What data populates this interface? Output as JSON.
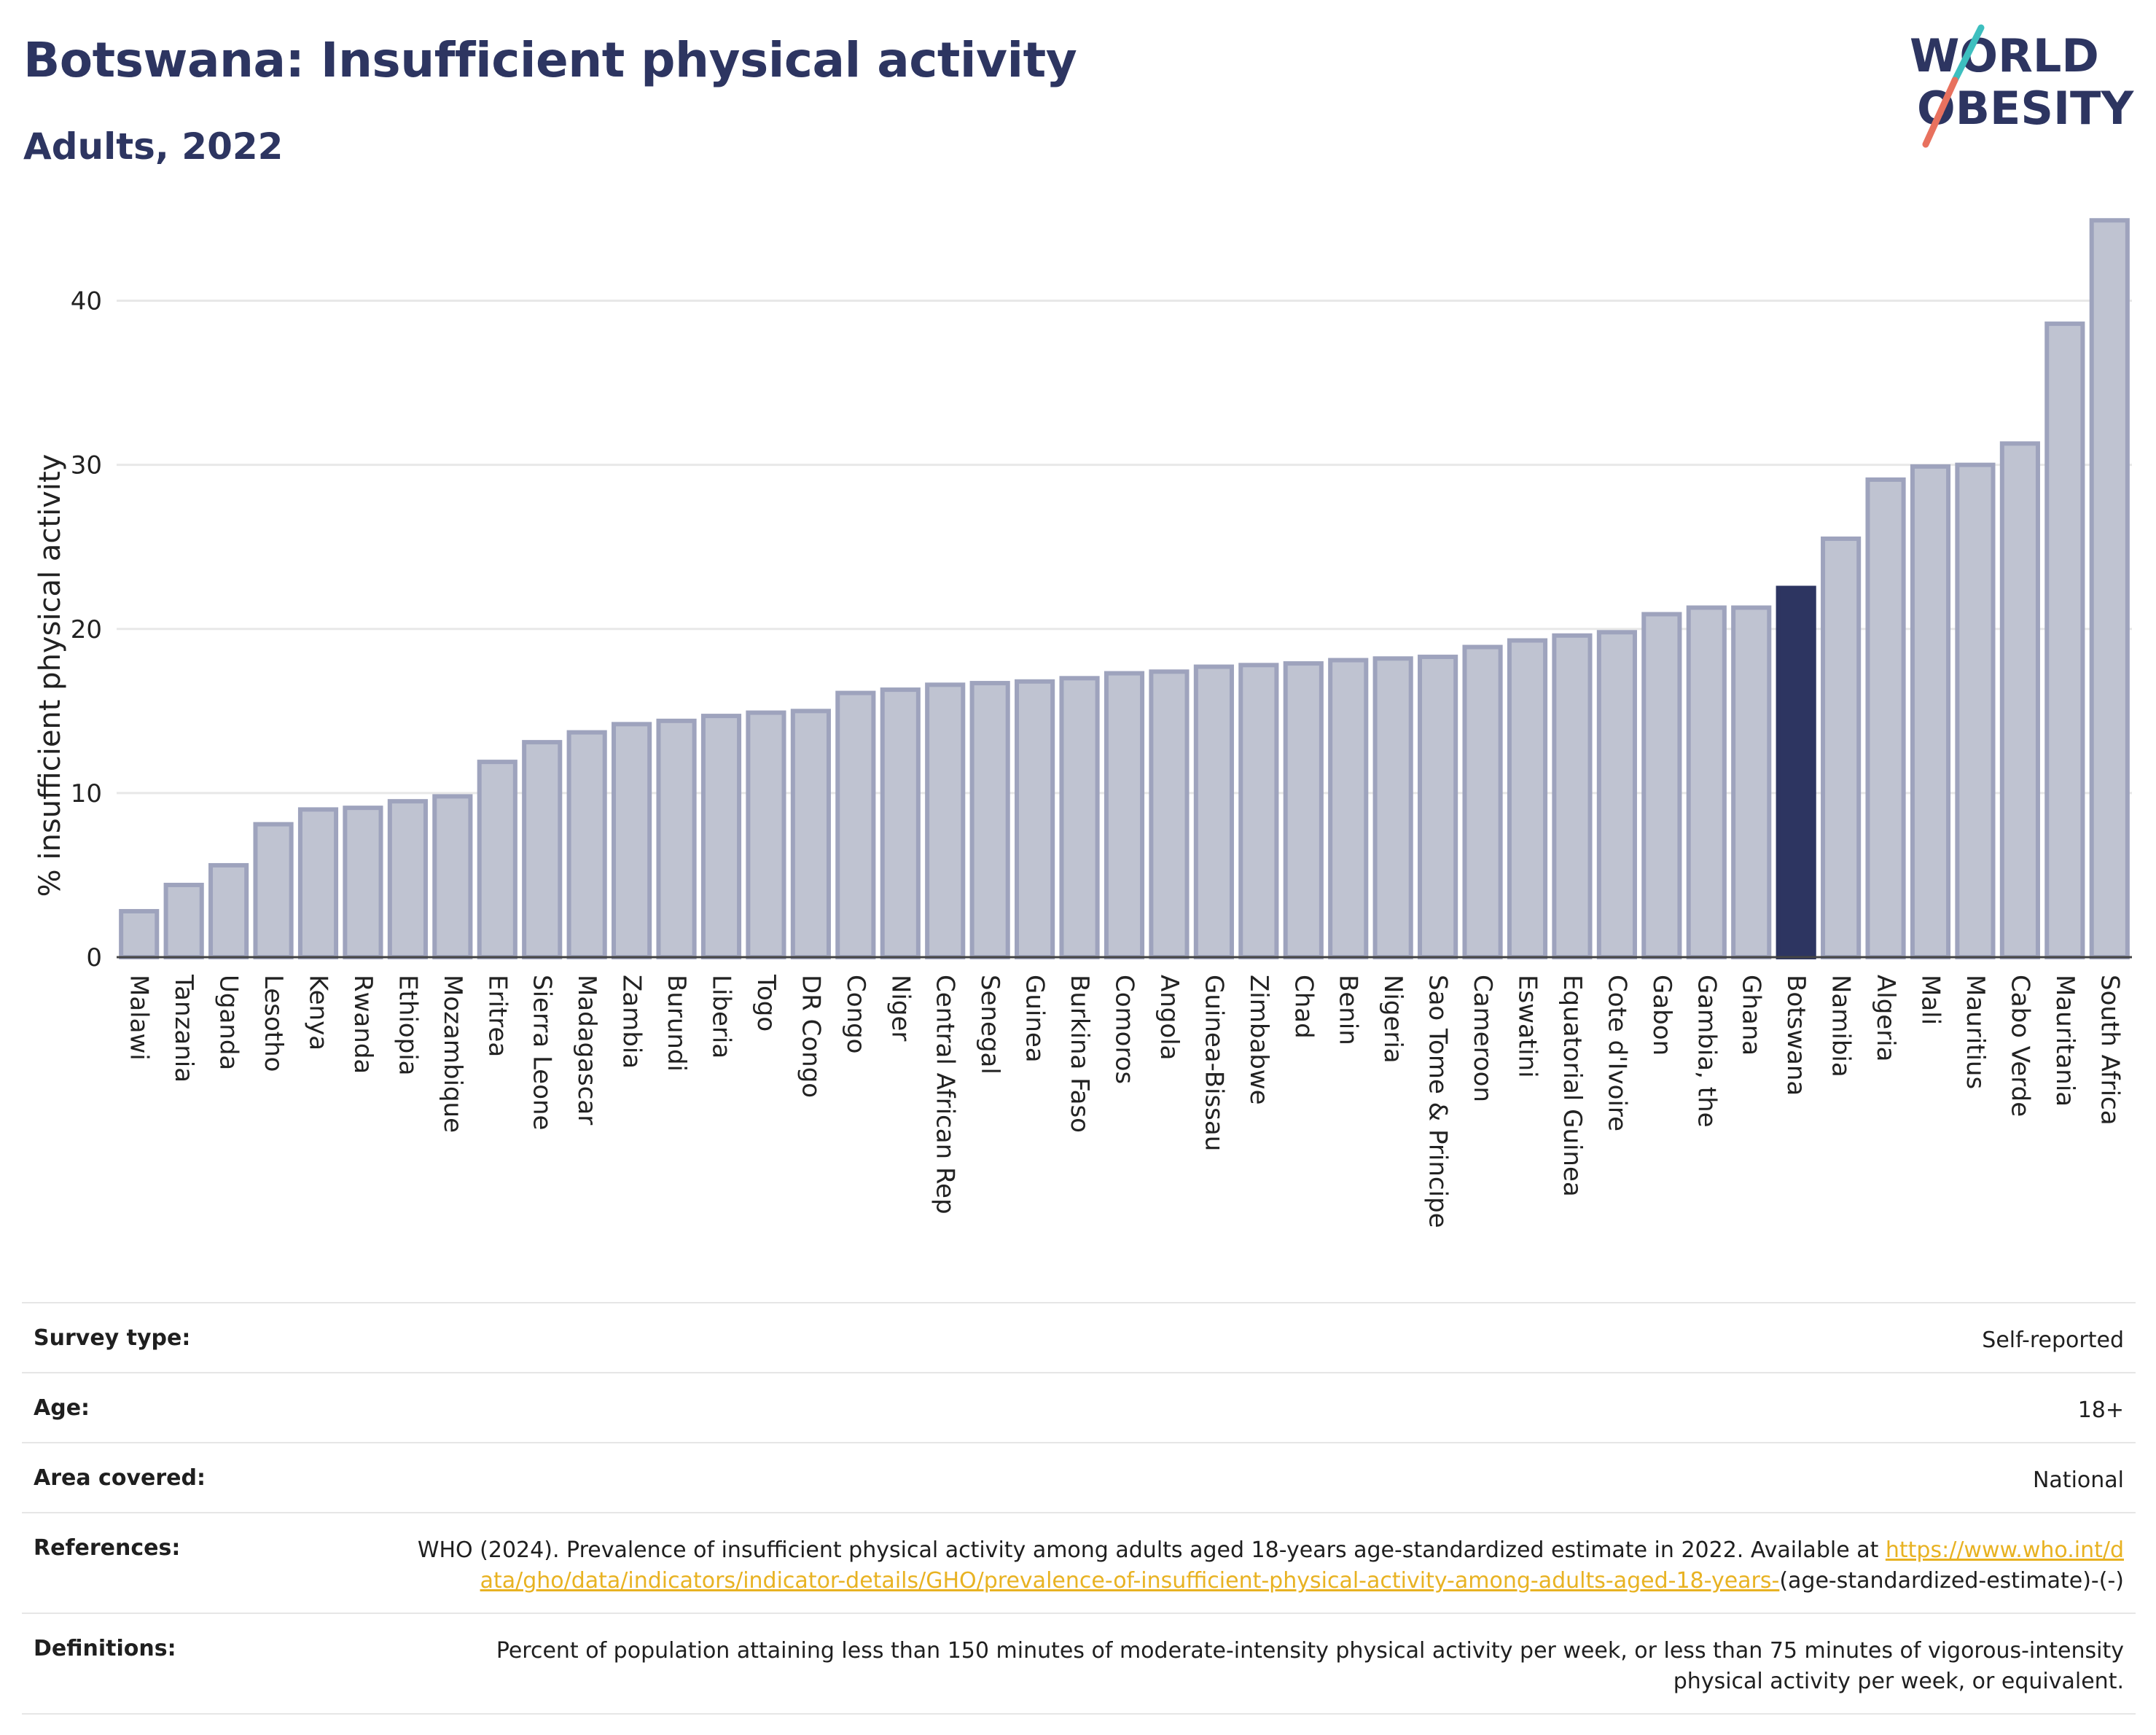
{
  "header": {
    "title": "Botswana: Insufficient physical activity",
    "subtitle": "Adults, 2022"
  },
  "logo": {
    "line1": "WORLD",
    "line2": "OBESITY",
    "text_color": "#2d3561",
    "slash_top_color": "#3dbfbf",
    "slash_bottom_color": "#e8715e"
  },
  "colors": {
    "bar_default": "#bfc3d1",
    "bar_default_border": "#9ea3bd",
    "bar_highlight": "#2d3561",
    "grid": "#e8e8e8"
  },
  "chart_data": {
    "type": "bar",
    "title": "Botswana: Insufficient physical activity",
    "subtitle": "Adults, 2022",
    "xlabel": "",
    "ylabel": "% insufficient physical activity",
    "ylim": [
      0,
      45
    ],
    "yticks": [
      0,
      10,
      20,
      30,
      40
    ],
    "grid": true,
    "highlight": "Botswana",
    "categories": [
      "Malawi",
      "Tanzania",
      "Uganda",
      "Lesotho",
      "Kenya",
      "Rwanda",
      "Ethiopia",
      "Mozambique",
      "Eritrea",
      "Sierra Leone",
      "Madagascar",
      "Zambia",
      "Burundi",
      "Liberia",
      "Togo",
      "DR Congo",
      "Congo",
      "Niger",
      "Central African Rep",
      "Senegal",
      "Guinea",
      "Burkina Faso",
      "Comoros",
      "Angola",
      "Guinea-Bissau",
      "Zimbabwe",
      "Chad",
      "Benin",
      "Nigeria",
      "Sao Tome & Principe",
      "Cameroon",
      "Eswatini",
      "Equatorial Guinea",
      "Cote d'Ivoire",
      "Gabon",
      "Gambia, the",
      "Ghana",
      "Botswana",
      "Namibia",
      "Algeria",
      "Mali",
      "Mauritius",
      "Cabo Verde",
      "Mauritania",
      "South Africa"
    ],
    "values": [
      2.8,
      4.4,
      5.6,
      8.1,
      9.0,
      9.1,
      9.5,
      9.8,
      11.9,
      13.1,
      13.7,
      14.2,
      14.4,
      14.7,
      14.9,
      15.0,
      16.1,
      16.3,
      16.6,
      16.7,
      16.8,
      17.0,
      17.3,
      17.4,
      17.7,
      17.8,
      17.9,
      18.1,
      18.2,
      18.3,
      18.9,
      19.3,
      19.6,
      19.8,
      20.9,
      21.3,
      21.3,
      22.5,
      25.5,
      29.1,
      29.9,
      30.0,
      31.3,
      38.6,
      44.9
    ]
  },
  "metadata": {
    "rows": [
      {
        "key": "Survey type:",
        "value": "Self-reported"
      },
      {
        "key": "Age:",
        "value": "18+"
      },
      {
        "key": "Area covered:",
        "value": "National"
      }
    ],
    "references_label": "References:",
    "references_text": "WHO (2024). Prevalence of insufficient physical activity among adults aged 18-years age-standardized estimate in 2022. Available at",
    "references_link": "https://www.who.int/data/gho/data/indicators/indicator-details/GHO/prevalence-of-insufficient-physical-activity-among-adults-aged-18-years-",
    "references_suffix": "(age-standardized-estimate)-(-)",
    "definitions_label": "Definitions:",
    "definitions_text": "Percent of population attaining less than 150 minutes of moderate-intensity physical activity per week, or less than 75 minutes of vigorous-intensity physical activity per week, or equivalent."
  }
}
